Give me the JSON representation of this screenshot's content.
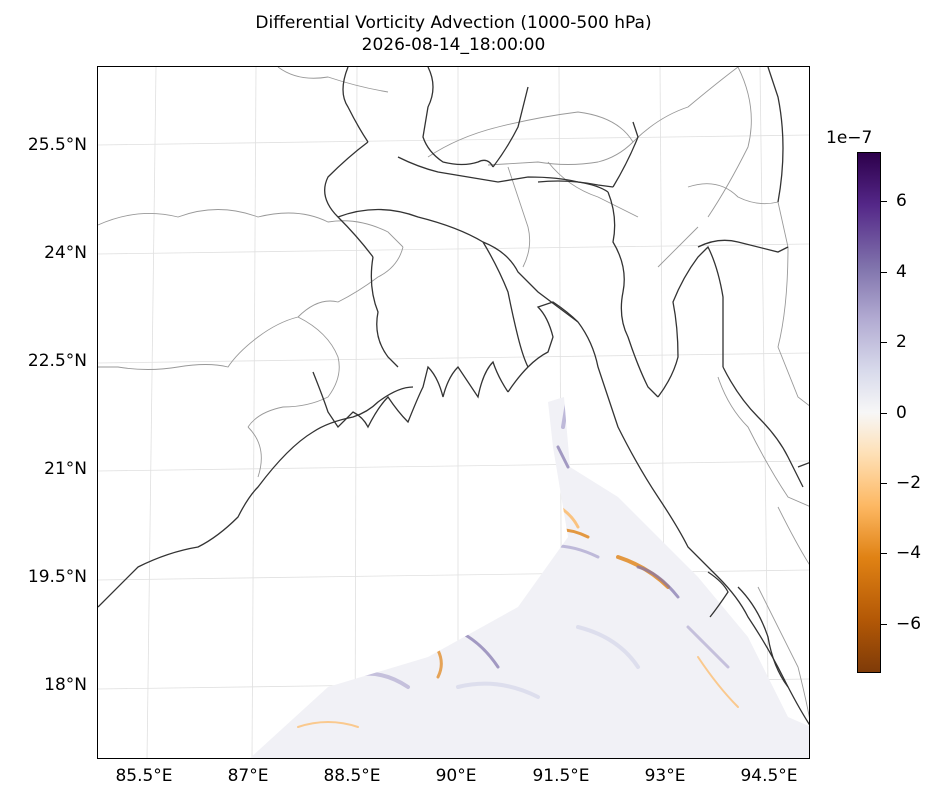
{
  "map": {
    "title": "Differential Vorticity Advection (1000-500 hPa)",
    "subtitle": "2026-08-14_18:00:00",
    "lat_labels": [
      "25.5°N",
      "24°N",
      "22.5°N",
      "21°N",
      "19.5°N",
      "18°N"
    ],
    "lon_labels": [
      "85.5°E",
      "87°E",
      "88.5°E",
      "90°E",
      "91.5°E",
      "93°E",
      "94.5°E"
    ],
    "colormap": "PuOr",
    "colors": {
      "positive": "#2d004b",
      "negative": "#7f3b08",
      "zero": "#f7f7f7",
      "coastline": "#333333",
      "borders": "#999999"
    }
  },
  "colorbar": {
    "exponent_label": "1e−7",
    "range": [
      -7.4,
      7.4
    ],
    "ticks": [
      "6",
      "4",
      "2",
      "0",
      "−2",
      "−4",
      "−6"
    ],
    "tick_values": [
      6,
      4,
      2,
      0,
      -2,
      -4,
      -6
    ]
  }
}
